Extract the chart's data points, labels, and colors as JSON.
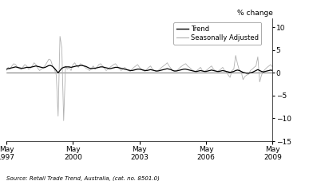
{
  "ylabel_right": "% change",
  "source_text": "Source: Retail Trade Trend, Australia, (cat. no. 8501.0)",
  "ylim": [
    -15,
    12
  ],
  "yticks": [
    -15,
    -10,
    -5,
    0,
    5,
    10
  ],
  "xtick_labels": [
    "May\n1997",
    "May\n2000",
    "May\n2003",
    "May\n2006",
    "May\n2009"
  ],
  "xtick_years": [
    1997,
    2000,
    2003,
    2006,
    2009
  ],
  "trend_color": "#000000",
  "seasonal_color": "#b0b0b0",
  "legend_labels": [
    "Trend",
    "Seasonally Adjusted"
  ],
  "background_color": "#ffffff",
  "trend_linewidth": 0.9,
  "seasonal_linewidth": 0.6,
  "seasonally_adjusted": [
    0.5,
    1.2,
    0.8,
    1.5,
    2.0,
    1.8,
    1.2,
    0.9,
    0.7,
    1.3,
    1.8,
    1.5,
    0.8,
    1.0,
    1.5,
    2.2,
    1.8,
    1.0,
    0.5,
    0.8,
    1.2,
    1.6,
    2.3,
    3.0,
    2.8,
    1.5,
    0.8,
    -0.5,
    -9.5,
    8.0,
    5.5,
    -10.5,
    1.5,
    0.8,
    1.2,
    0.5,
    1.8,
    2.2,
    1.5,
    1.2,
    2.0,
    1.8,
    1.5,
    1.0,
    0.8,
    0.5,
    1.0,
    1.5,
    0.8,
    1.2,
    1.8,
    2.0,
    1.5,
    1.0,
    0.5,
    0.8,
    1.2,
    1.5,
    1.8,
    2.0,
    1.5,
    1.0,
    0.5,
    0.8,
    1.2,
    0.8,
    0.5,
    0.3,
    0.8,
    1.2,
    1.5,
    1.8,
    1.2,
    0.8,
    0.5,
    0.3,
    0.8,
    1.2,
    1.5,
    0.8,
    0.5,
    0.3,
    0.5,
    0.8,
    1.2,
    1.5,
    1.8,
    2.2,
    1.5,
    1.0,
    0.5,
    0.3,
    0.5,
    0.8,
    1.2,
    1.5,
    1.8,
    2.0,
    1.5,
    1.2,
    0.8,
    0.5,
    0.3,
    0.5,
    0.8,
    1.2,
    0.5,
    0.3,
    0.5,
    0.8,
    1.2,
    1.5,
    0.8,
    0.5,
    0.3,
    0.5,
    0.8,
    1.2,
    0.5,
    0.3,
    -0.5,
    -1.0,
    0.5,
    0.8,
    3.8,
    2.0,
    0.5,
    0.3,
    -1.5,
    -0.8,
    -0.5,
    -0.3,
    0.5,
    0.8,
    1.2,
    1.5,
    3.5,
    -2.0,
    -0.5,
    0.3,
    0.8,
    1.2,
    1.5,
    1.8,
    1.2,
    0.8,
    0.5,
    0.3,
    0.8
  ],
  "trend": [
    0.8,
    0.9,
    1.0,
    1.1,
    1.2,
    1.3,
    1.2,
    1.1,
    1.0,
    1.0,
    1.1,
    1.2,
    1.2,
    1.2,
    1.3,
    1.4,
    1.5,
    1.4,
    1.3,
    1.2,
    1.1,
    1.2,
    1.4,
    1.6,
    1.6,
    1.4,
    1.0,
    0.5,
    0.0,
    0.5,
    1.0,
    1.2,
    1.3,
    1.3,
    1.3,
    1.2,
    1.3,
    1.4,
    1.5,
    1.5,
    1.6,
    1.6,
    1.5,
    1.4,
    1.2,
    1.0,
    0.9,
    1.0,
    1.0,
    1.1,
    1.2,
    1.3,
    1.3,
    1.2,
    1.1,
    1.0,
    0.9,
    1.0,
    1.1,
    1.2,
    1.2,
    1.1,
    1.0,
    0.9,
    0.8,
    0.7,
    0.6,
    0.5,
    0.5,
    0.6,
    0.7,
    0.8,
    0.8,
    0.7,
    0.6,
    0.5,
    0.5,
    0.6,
    0.7,
    0.6,
    0.5,
    0.4,
    0.4,
    0.5,
    0.6,
    0.7,
    0.8,
    0.9,
    0.8,
    0.7,
    0.5,
    0.4,
    0.4,
    0.5,
    0.6,
    0.7,
    0.8,
    0.8,
    0.7,
    0.6,
    0.5,
    0.4,
    0.3,
    0.3,
    0.4,
    0.5,
    0.4,
    0.3,
    0.3,
    0.4,
    0.5,
    0.6,
    0.5,
    0.4,
    0.3,
    0.3,
    0.4,
    0.5,
    0.4,
    0.3,
    0.2,
    0.1,
    0.2,
    0.3,
    0.5,
    0.6,
    0.5,
    0.3,
    0.1,
    0.0,
    -0.1,
    -0.1,
    0.0,
    0.1,
    0.3,
    0.5,
    0.7,
    0.5,
    0.3,
    0.2,
    0.3,
    0.4,
    0.5,
    0.6,
    0.5,
    0.4,
    0.3,
    0.2,
    0.1
  ]
}
